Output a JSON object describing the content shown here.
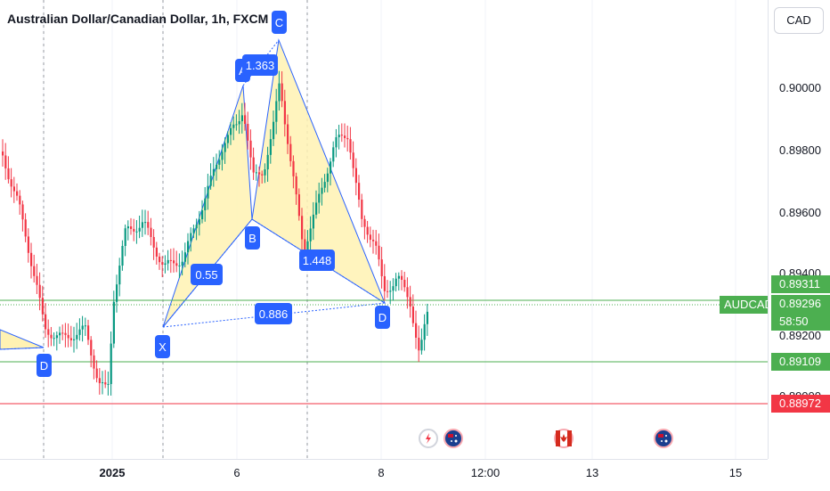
{
  "header": {
    "title": "Australian Dollar/Canadian Dollar, 1h, FXCM"
  },
  "currency_button": "CAD",
  "price_axis": {
    "ticks": [
      "0.90000",
      "0.89800",
      "0.89600",
      "0.89400",
      "0.89200",
      "0.89000"
    ]
  },
  "time_axis": {
    "ticks": [
      {
        "label": "2025",
        "bold": true
      },
      {
        "label": "6",
        "bold": false
      },
      {
        "label": "8",
        "bold": false
      },
      {
        "label": "12:00",
        "bold": false
      },
      {
        "label": "13",
        "bold": false
      },
      {
        "label": "15",
        "bold": false
      }
    ]
  },
  "price_labels": {
    "upper_line": "0.89311",
    "last_price": "0.89296",
    "countdown": "58:50",
    "lower_line": "0.89109",
    "red_line": "0.88972",
    "symbol": "AUDCAD"
  },
  "pattern": {
    "points": [
      "X",
      "A",
      "B",
      "C",
      "D",
      "D"
    ],
    "ratios": [
      "1.363",
      "0.55",
      "1.448",
      "0.886"
    ]
  },
  "colors": {
    "up": "#089981",
    "down": "#f23645",
    "pattern_fill": "#fff2b3",
    "pattern_line": "#2962ff",
    "label_bg": "#2962ff",
    "green_line": "#4caf50",
    "red_line": "#f23645"
  },
  "events": [
    {
      "icon": "lightning-event-icon"
    },
    {
      "icon": "australia-flag-icon"
    },
    {
      "icon": "canada-flag-icon"
    },
    {
      "icon": "australia-flag-icon"
    }
  ]
}
